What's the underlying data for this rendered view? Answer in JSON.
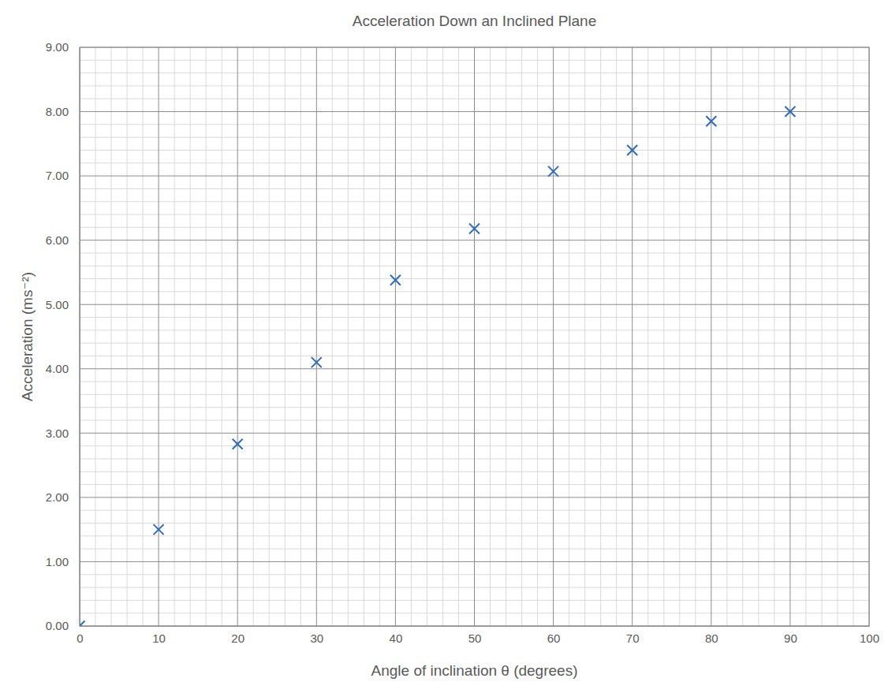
{
  "chart_data": {
    "type": "scatter",
    "title": "Acceleration Down an Inclined Plane",
    "x_label": "Angle of inclination θ (degrees)",
    "y_label": "Acceleration (ms⁻²)",
    "x": [
      0,
      10,
      20,
      30,
      40,
      50,
      60,
      70,
      80,
      90
    ],
    "values": [
      0.0,
      1.5,
      2.83,
      4.1,
      5.38,
      6.18,
      7.07,
      7.4,
      7.85,
      8.0
    ],
    "color": "#2e6bb8",
    "marker": "x",
    "xlim": [
      0,
      100
    ],
    "xticks": [
      0,
      10,
      20,
      30,
      40,
      50,
      60,
      70,
      80,
      90,
      100
    ],
    "ylim": [
      0,
      9
    ],
    "yticks": [
      {
        "value": 0,
        "label": "0.00"
      },
      {
        "value": 1,
        "label": "1.00"
      },
      {
        "value": 2,
        "label": "2.00"
      },
      {
        "value": 3,
        "label": "3.00"
      },
      {
        "value": 4,
        "label": "4.00"
      },
      {
        "value": 5,
        "label": "5.00"
      },
      {
        "value": 6,
        "label": "6.00"
      },
      {
        "value": 7,
        "label": "7.00"
      },
      {
        "value": 8,
        "label": "8.00"
      },
      {
        "value": 9,
        "label": "9.00"
      }
    ],
    "grid": true
  }
}
